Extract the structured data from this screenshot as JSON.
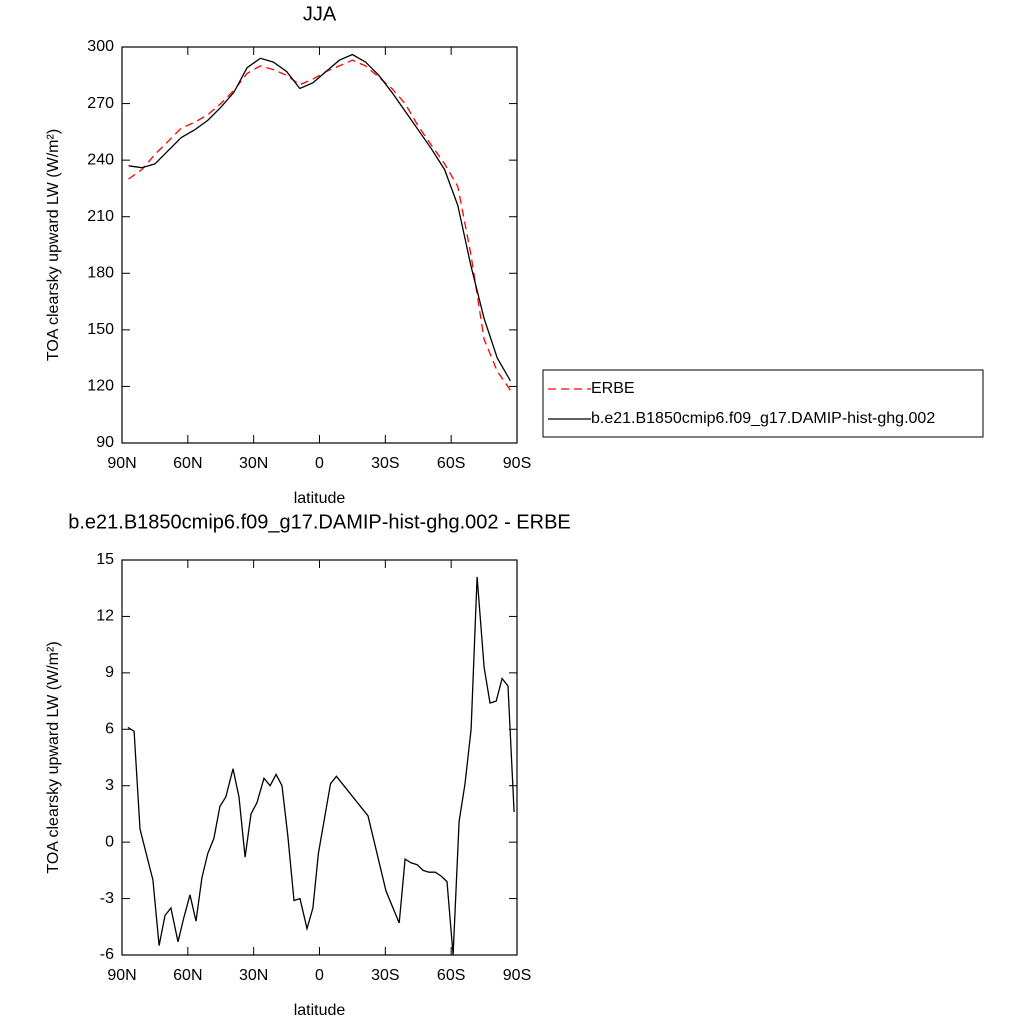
{
  "chart_data": [
    {
      "type": "line",
      "title": "JJA",
      "xlabel": "latitude",
      "ylabel": "TOA clearsky upward LW (W/m²)",
      "x": [
        87,
        81,
        75,
        69,
        63,
        57,
        51,
        45,
        39,
        33,
        27,
        21,
        15,
        9,
        3,
        -3,
        -9,
        -15,
        -21,
        -27,
        -33,
        -39,
        -45,
        -51,
        -57,
        -63,
        -69,
        -75,
        -81,
        -87
      ],
      "series": [
        {
          "name": "ERBE",
          "color": "#ff0000",
          "style": "dashed",
          "values": [
            230,
            235,
            243,
            250,
            257,
            260,
            264,
            270,
            277,
            286,
            290,
            288,
            285,
            280,
            283,
            287,
            290,
            293,
            290,
            284,
            278,
            270,
            258,
            248,
            238,
            226,
            190,
            145,
            128,
            118
          ]
        },
        {
          "name": "b.e21.B1850cmip6.f09_g17.DAMIP-hist-ghg.002",
          "color": "#000000",
          "style": "solid",
          "values": [
            237,
            236,
            238,
            245,
            252,
            256,
            261,
            268,
            276,
            289,
            294,
            292,
            287,
            278,
            281,
            287,
            293,
            296,
            292,
            285,
            276,
            266,
            256,
            246,
            235,
            216,
            184,
            156,
            135,
            123
          ]
        }
      ],
      "xlim": [
        90,
        -90
      ],
      "xticks": [
        {
          "value": 90,
          "label": "90N"
        },
        {
          "value": 60,
          "label": "60N"
        },
        {
          "value": 30,
          "label": "30N"
        },
        0,
        {
          "value": -30,
          "label": "30S"
        },
        {
          "value": -60,
          "label": "60S"
        },
        {
          "value": -90,
          "label": "90S"
        }
      ],
      "ylim": [
        90,
        300
      ],
      "yticks": [
        90,
        120,
        150,
        180,
        210,
        240,
        270,
        300
      ],
      "legend": "right"
    },
    {
      "type": "line",
      "title": "b.e21.B1850cmip6.f09_g17.DAMIP-hist-ghg.002 - ERBE",
      "xlabel": "latitude",
      "ylabel": "TOA clearsky upward LW (W/m²)",
      "x": [
        87.3,
        84.5,
        81.8,
        75.9,
        73.1,
        70.4,
        67.7,
        64.5,
        61.8,
        59.0,
        56.3,
        53.6,
        50.9,
        48.1,
        45.4,
        42.7,
        39.4,
        36.7,
        33.9,
        31.2,
        28.5,
        25.3,
        22.5,
        19.8,
        17.1,
        14.4,
        11.6,
        8.9,
        5.7,
        3.0,
        0.5,
        -5.0,
        -7.7,
        -22.1,
        -30.3,
        -36.3,
        -39.0,
        -41.7,
        -44.5,
        -47.2,
        -49.9,
        -52.7,
        -55.4,
        -58.1,
        -60.9,
        -63.6,
        -66.3,
        -69.1,
        -71.8,
        -75.0,
        -77.7,
        -80.5,
        -83.2,
        -85.9,
        -88.7
      ],
      "color": "#000000",
      "values": [
        6.1,
        5.9,
        0.7,
        -2.0,
        -5.5,
        -3.9,
        -3.5,
        -5.3,
        -4.0,
        -2.8,
        -4.2,
        -1.9,
        -0.6,
        0.2,
        1.9,
        2.4,
        3.9,
        2.4,
        -0.8,
        1.5,
        2.1,
        3.4,
        3.0,
        3.6,
        3.0,
        0.3,
        -3.1,
        -3.0,
        -4.6,
        -3.5,
        -0.6,
        3.1,
        3.5,
        1.4,
        -2.6,
        -4.3,
        -0.9,
        -1.1,
        -1.2,
        -1.5,
        -1.6,
        -1.6,
        -1.8,
        -2.1,
        -6.0,
        1.1,
        3.1,
        6.0,
        14.1,
        9.3,
        7.4,
        7.5,
        8.7,
        8.3,
        1.6
      ],
      "xlim": [
        90,
        -90
      ],
      "xticks": [
        {
          "value": 90,
          "label": "90N"
        },
        {
          "value": 60,
          "label": "60N"
        },
        {
          "value": 30,
          "label": "30N"
        },
        0,
        {
          "value": -30,
          "label": "30S"
        },
        {
          "value": -60,
          "label": "60S"
        },
        {
          "value": -90,
          "label": "90S"
        }
      ],
      "ylim": [
        -6,
        15
      ],
      "yticks": [
        -6,
        -3,
        0,
        3,
        6,
        9,
        12,
        15
      ]
    }
  ]
}
